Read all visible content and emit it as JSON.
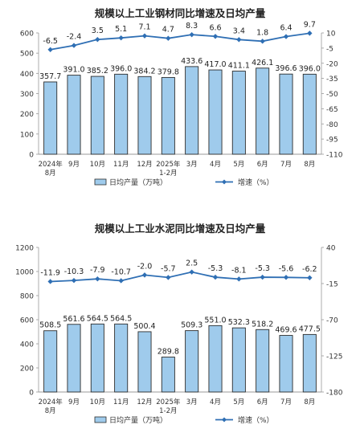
{
  "chart_data": [
    {
      "type": "bar+line",
      "title": "规模以上工业钢材同比增速及日均产量",
      "categories": [
        "2024年\n8月",
        "9月",
        "10月",
        "11月",
        "12月",
        "2025年\n1-2月",
        "3月",
        "4月",
        "5月",
        "6月",
        "7月",
        "8月"
      ],
      "series": [
        {
          "name": "日均产量（万吨）",
          "type": "bar",
          "axis": "left",
          "values": [
            357.7,
            391.0,
            385.2,
            396.0,
            384.2,
            379.8,
            433.6,
            417.0,
            411.1,
            426.1,
            396.6,
            396.0
          ]
        },
        {
          "name": "增速（%）",
          "type": "line",
          "axis": "right",
          "values": [
            -6.5,
            -2.4,
            3.5,
            5.1,
            7.1,
            4.7,
            8.3,
            6.6,
            3.4,
            1.8,
            6.4,
            9.7
          ]
        }
      ],
      "left_axis": {
        "ylim": [
          0,
          600
        ],
        "ticks": [
          0,
          100,
          200,
          300,
          400,
          500,
          600
        ]
      },
      "right_axis": {
        "ylim": [
          -110,
          10
        ],
        "ticks": [
          10,
          -5,
          -20,
          -35,
          -50,
          -65,
          -80,
          -95,
          -110
        ]
      },
      "legend": "bottom",
      "bar_color": "#9fcbec",
      "line_color": "#2f6fb4"
    },
    {
      "type": "bar+line",
      "title": "规模以上工业水泥同比增速及日均产量",
      "categories": [
        "2024年\n8月",
        "9月",
        "10月",
        "11月",
        "12月",
        "2025年\n1-2月",
        "3月",
        "4月",
        "5月",
        "6月",
        "7月",
        "8月"
      ],
      "series": [
        {
          "name": "日均产量（万吨）",
          "type": "bar",
          "axis": "left",
          "values": [
            508.5,
            561.6,
            564.5,
            564.5,
            500.4,
            289.8,
            509.3,
            551.0,
            532.3,
            518.2,
            469.6,
            477.5
          ]
        },
        {
          "name": "增速（%）",
          "type": "line",
          "axis": "right",
          "values": [
            -11.9,
            -10.3,
            -7.9,
            -10.7,
            -2.0,
            -5.7,
            2.5,
            -5.3,
            -8.1,
            -5.3,
            -5.6,
            -6.2
          ]
        }
      ],
      "left_axis": {
        "ylim": [
          0,
          1200
        ],
        "ticks": [
          0,
          200,
          400,
          600,
          800,
          1000,
          1200
        ]
      },
      "right_axis": {
        "ylim": [
          -180,
          40
        ],
        "ticks": [
          40,
          -15,
          -70,
          -125,
          -180
        ]
      },
      "legend": "bottom",
      "bar_color": "#9fcbec",
      "line_color": "#2f6fb4"
    }
  ]
}
